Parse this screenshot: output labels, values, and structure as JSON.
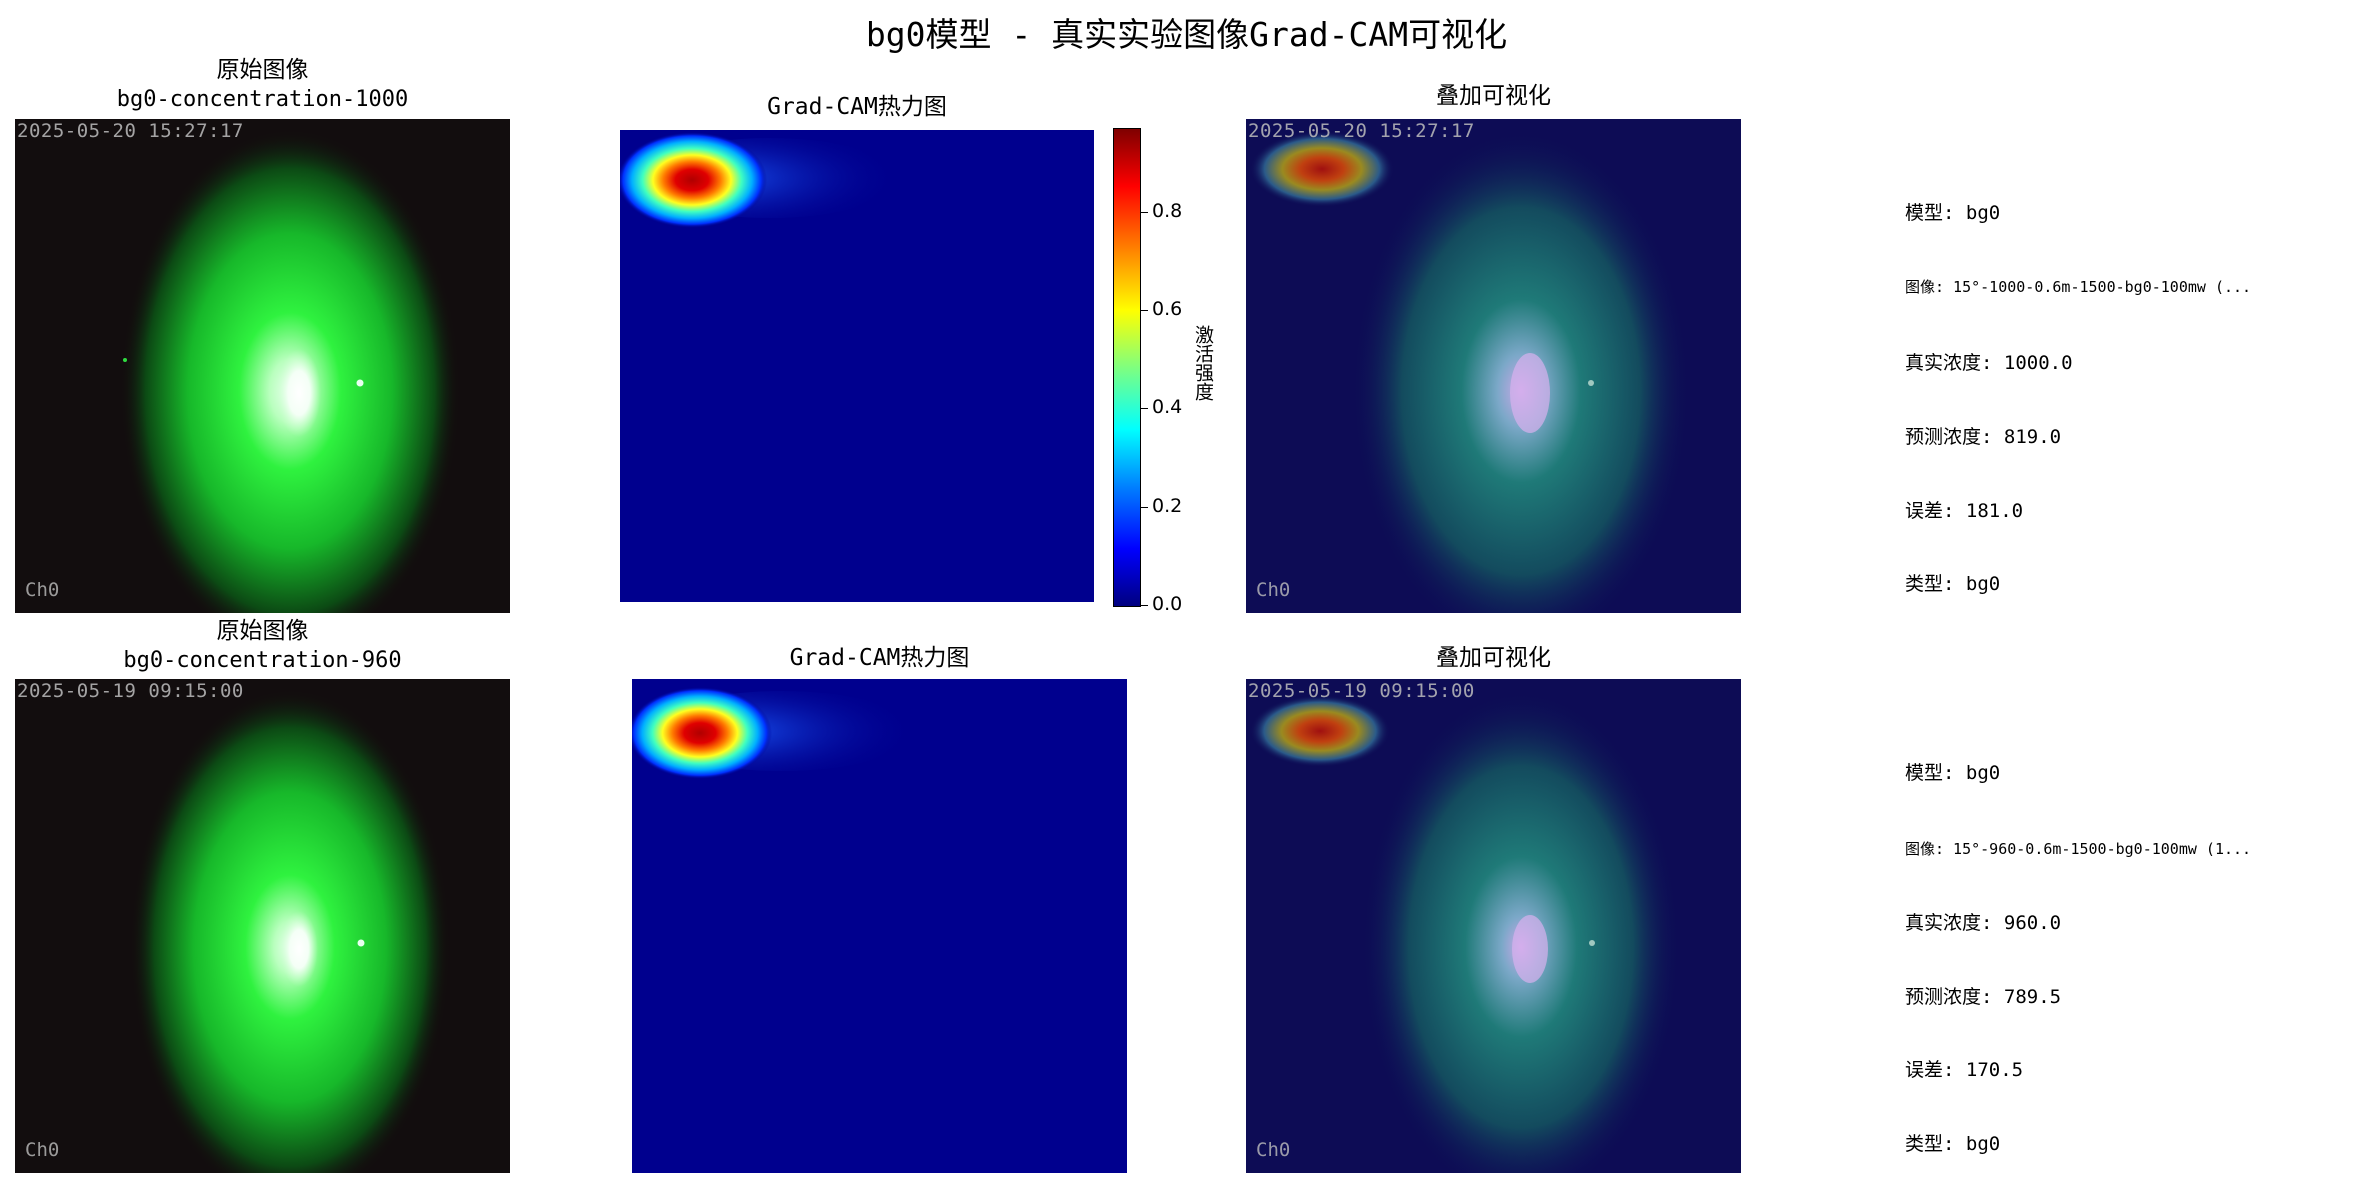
{
  "figure_title": "bg0模型 - 真实实验图像Grad-CAM可视化",
  "colors": {
    "background": "#ffffff",
    "camera_bg": "#120d0e",
    "plume_green": "#1aff3a",
    "heatmap_bg": "#00008e",
    "overlay_bg": "#0d0c55"
  },
  "colorbar": {
    "colormap": "jet",
    "label": "激活强度",
    "ticks": [
      "0.0",
      "0.2",
      "0.4",
      "0.6",
      "0.8"
    ],
    "tick_values": [
      0.0,
      0.2,
      0.4,
      0.6,
      0.8
    ],
    "range": [
      0,
      0.97
    ]
  },
  "rows": [
    {
      "original": {
        "title": "原始图像",
        "subtitle": "bg0-concentration-1000",
        "timestamp": "2025-05-20 15:27:17",
        "channel": "Ch0"
      },
      "heatmap": {
        "title": "Grad-CAM热力图"
      },
      "overlay": {
        "title": "叠加可视化",
        "timestamp": "2025-05-20 15:27:17",
        "channel": "Ch0"
      },
      "info": {
        "model": "模型: bg0",
        "image": "图像: 15°-1000-0.6m-1500-bg0-100mw (...",
        "true_conc": "真实浓度: 1000.0",
        "pred_conc": "预测浓度: 819.0",
        "error": "误差: 181.0",
        "type": "类型: bg0"
      }
    },
    {
      "original": {
        "title": "原始图像",
        "subtitle": "bg0-concentration-960",
        "timestamp": "2025-05-19 09:15:00",
        "channel": "Ch0"
      },
      "heatmap": {
        "title": "Grad-CAM热力图"
      },
      "overlay": {
        "title": "叠加可视化",
        "timestamp": "2025-05-19 09:15:00",
        "channel": "Ch0"
      },
      "info": {
        "model": "模型: bg0",
        "image": "图像: 15°-960-0.6m-1500-bg0-100mw (1...",
        "true_conc": "真实浓度: 960.0",
        "pred_conc": "预测浓度: 789.5",
        "error": "误差: 170.5",
        "type": "类型: bg0"
      }
    }
  ]
}
